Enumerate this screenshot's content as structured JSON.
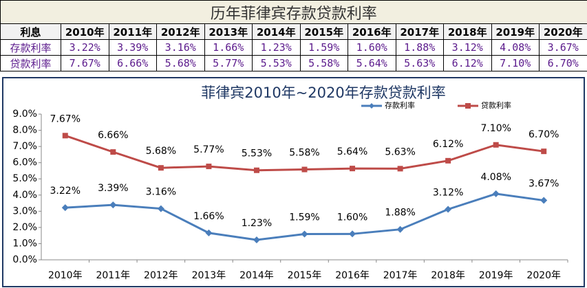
{
  "table": {
    "title": "历年菲律宾存款贷款利率",
    "header": [
      "利息",
      "2010年",
      "2011年",
      "2012年",
      "2013年",
      "2014年",
      "2015年",
      "2016年",
      "2017年",
      "2018年",
      "2019年",
      "2020年"
    ],
    "rows": [
      [
        "存款利率",
        "3.22%",
        "3.39%",
        "3.16%",
        "1.66%",
        "1.23%",
        "1.59%",
        "1.60%",
        "1.88%",
        "3.12%",
        "4.08%",
        "3.67%"
      ],
      [
        "贷款利率",
        "7.67%",
        "6.66%",
        "5.68%",
        "5.77%",
        "5.53%",
        "5.58%",
        "5.64%",
        "5.63%",
        "6.12%",
        "7.10%",
        "6.70%"
      ]
    ]
  },
  "chart_data": {
    "type": "line",
    "title": "菲律宾2010年~2020年存款贷款利率",
    "categories": [
      "2010年",
      "2011年",
      "2012年",
      "2013年",
      "2014年",
      "2015年",
      "2016年",
      "2017年",
      "2018年",
      "2019年",
      "2020年"
    ],
    "series": [
      {
        "name": "存款利率",
        "color": "#4a7ebb",
        "marker": "diamond",
        "values": [
          3.22,
          3.39,
          3.16,
          1.66,
          1.23,
          1.59,
          1.6,
          1.88,
          3.12,
          4.08,
          3.67
        ],
        "value_labels": [
          "3.22%",
          "3.39%",
          "3.16%",
          "1.66%",
          "1.23%",
          "1.59%",
          "1.60%",
          "1.88%",
          "3.12%",
          "4.08%",
          "3.67%"
        ]
      },
      {
        "name": "贷款利率",
        "color": "#be4b48",
        "marker": "square",
        "values": [
          7.67,
          6.66,
          5.68,
          5.77,
          5.53,
          5.58,
          5.64,
          5.63,
          6.12,
          7.1,
          6.7
        ],
        "value_labels": [
          "7.67%",
          "6.66%",
          "5.68%",
          "5.77%",
          "5.53%",
          "5.58%",
          "5.64%",
          "5.63%",
          "6.12%",
          "7.10%",
          "6.70%"
        ]
      }
    ],
    "ylim": [
      0,
      9
    ],
    "yticks": [
      {
        "value": 0,
        "label": "0.0%"
      },
      {
        "value": 1,
        "label": "1.0%"
      },
      {
        "value": 2,
        "label": "2.0%"
      },
      {
        "value": 3,
        "label": "3.0%"
      },
      {
        "value": 4,
        "label": "4.0%"
      },
      {
        "value": 5,
        "label": "5.0%"
      },
      {
        "value": 6,
        "label": "6.0%"
      },
      {
        "value": 7,
        "label": "7.0%"
      },
      {
        "value": 8,
        "label": "8.0%"
      },
      {
        "value": 9,
        "label": "9.0%"
      }
    ],
    "grid": false,
    "legend": "top-right"
  }
}
